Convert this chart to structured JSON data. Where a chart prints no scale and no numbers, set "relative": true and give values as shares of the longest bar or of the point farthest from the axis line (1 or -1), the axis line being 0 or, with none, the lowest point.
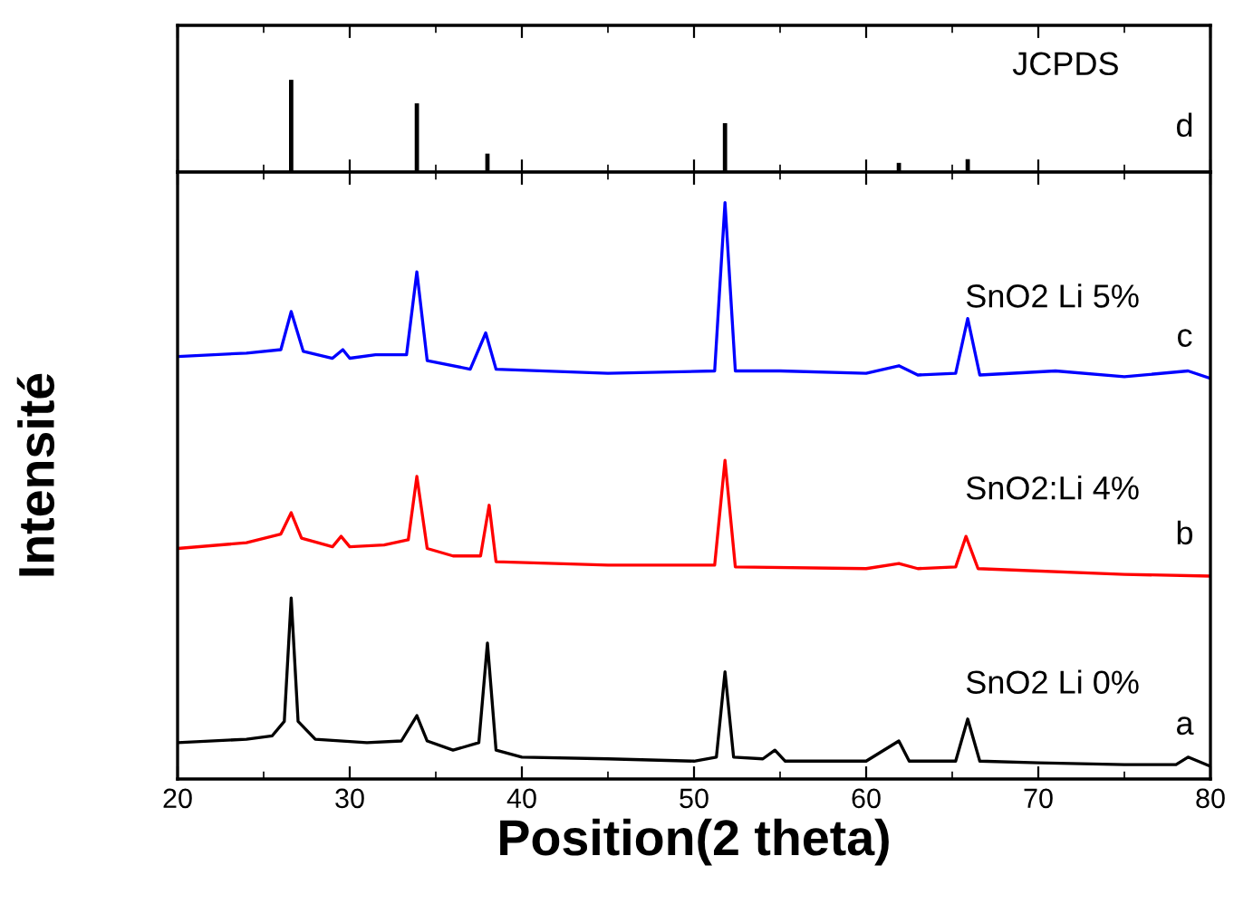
{
  "chart_data": [
    {
      "type": "bar",
      "relative": true,
      "xlim": [
        20,
        80
      ],
      "xticks": [
        20,
        30,
        40,
        50,
        60,
        70,
        80
      ],
      "tick_labels": false,
      "x": [
        26.6,
        33.9,
        38.0,
        51.8,
        61.9,
        65.9
      ],
      "series": [
        {
          "name": "JCPDS",
          "color": "#000000",
          "values": [
            1,
            0.745,
            0.2,
            0.53,
            0.1,
            0.14
          ]
        }
      ],
      "annotations": [
        "d"
      ]
    },
    {
      "type": "line",
      "relative": true,
      "xlim": [
        20,
        80
      ],
      "xticks": [
        20,
        30,
        40,
        50,
        60,
        70,
        80
      ],
      "tick_labels": "x",
      "xlabel": "Position(2 theta)",
      "ylabel": "Intensité",
      "series": [
        {
          "name": "SnO2 Li 0%",
          "color": "#000000",
          "x": [
            20,
            24,
            25.5,
            26.2,
            26.6,
            27.0,
            28,
            31,
            33,
            33.9,
            34.5,
            36,
            37.5,
            38.0,
            38.5,
            40,
            45,
            50,
            51.3,
            51.8,
            52.3,
            54,
            54.7,
            55.3,
            60,
            61.9,
            62.5,
            65.2,
            65.9,
            66.6,
            70,
            75,
            78,
            78.7,
            80
          ],
          "values": [
            0.063,
            0.069,
            0.075,
            0.1,
            0.314,
            0.1,
            0.069,
            0.063,
            0.066,
            0.11,
            0.066,
            0.05,
            0.063,
            0.236,
            0.05,
            0.038,
            0.035,
            0.031,
            0.038,
            0.186,
            0.038,
            0.035,
            0.05,
            0.031,
            0.031,
            0.066,
            0.031,
            0.031,
            0.104,
            0.031,
            0.028,
            0.025,
            0.025,
            0.038,
            0.022
          ]
        },
        {
          "name": "SnO2:Li 4%",
          "color": "#ff0000",
          "x": [
            20,
            24,
            26,
            26.6,
            27.2,
            29,
            29.5,
            30,
            32,
            33.4,
            33.9,
            34.5,
            36,
            37.6,
            38.1,
            38.5,
            45,
            51.2,
            51.8,
            52.4,
            60,
            61.9,
            63,
            65.2,
            65.8,
            66.5,
            75,
            80
          ],
          "values": [
            0.4,
            0.41,
            0.425,
            0.462,
            0.418,
            0.403,
            0.421,
            0.403,
            0.406,
            0.415,
            0.525,
            0.4,
            0.387,
            0.387,
            0.475,
            0.377,
            0.371,
            0.371,
            0.553,
            0.368,
            0.365,
            0.374,
            0.365,
            0.368,
            0.421,
            0.365,
            0.355,
            0.352
          ]
        },
        {
          "name": "SnO2 Li 5%",
          "color": "#0000ff",
          "x": [
            20,
            24,
            26,
            26.6,
            27.3,
            29,
            29.6,
            30,
            31.5,
            33.3,
            33.9,
            34.5,
            37,
            37.9,
            38.5,
            45,
            51.2,
            51.8,
            52.4,
            55,
            60,
            61.9,
            63,
            65.2,
            65.9,
            66.6,
            71,
            75,
            78.7,
            80
          ],
          "values": [
            0.733,
            0.739,
            0.745,
            0.811,
            0.742,
            0.73,
            0.745,
            0.73,
            0.736,
            0.736,
            0.88,
            0.726,
            0.711,
            0.774,
            0.711,
            0.704,
            0.708,
            1.0,
            0.708,
            0.708,
            0.704,
            0.717,
            0.701,
            0.704,
            0.799,
            0.701,
            0.708,
            0.698,
            0.708,
            0.695
          ]
        }
      ],
      "annotations": [
        "a",
        "b",
        "c"
      ]
    }
  ]
}
